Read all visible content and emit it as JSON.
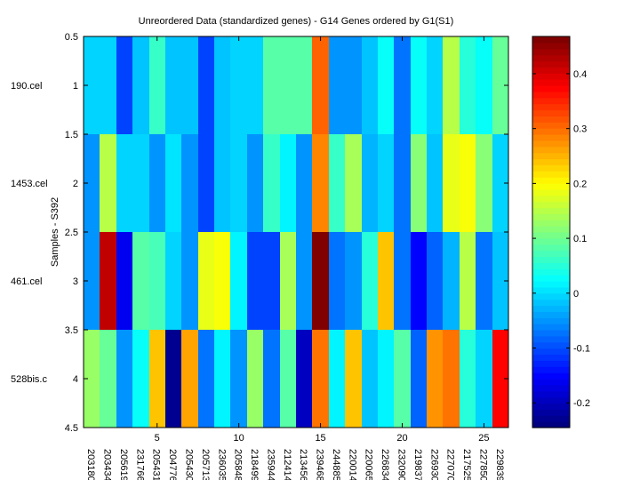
{
  "chart_data": {
    "type": "heatmap",
    "title": "Unreordered Data (standardized genes) - G14 Genes ordered by G1(S1)",
    "xlabel": "",
    "ylabel": "Samples - S392",
    "colormap": "jet",
    "clim": [
      -0.245,
      0.468
    ],
    "row_labels": [
      "190.cel",
      "1453.cel",
      "461.cel",
      "528bis.c"
    ],
    "column_labels": [
      "203180_",
      "203434_",
      "205619_",
      "231766_",
      "205431_",
      "204776_",
      "205430_",
      "205713_",
      "236035_",
      "205848_",
      "218499_",
      "235944_",
      "212414_",
      "213456_",
      "239468_",
      "244885_",
      "220014_",
      "220065_",
      "226834_",
      "232090_",
      "219837_",
      "226930_",
      "227070_",
      "217525_",
      "227850_",
      "229839_"
    ],
    "x_ticks": [
      5,
      10,
      15,
      20,
      25
    ],
    "x_tick_labels": [
      "5",
      "10",
      "15",
      "20",
      "25"
    ],
    "y_ticks": [
      0.5,
      1,
      1.5,
      2,
      2.5,
      3,
      3.5,
      4,
      4.5
    ],
    "y_tick_labels": [
      "0.5",
      "1",
      "1.5",
      "2",
      "2.5",
      "3",
      "3.5",
      "4",
      "4.5"
    ],
    "ylim": [
      0.5,
      4.5
    ],
    "xlim": [
      0.5,
      26.5
    ],
    "values": [
      [
        0.0,
        0.0,
        -0.111,
        -0.022,
        0.058,
        -0.022,
        -0.022,
        -0.111,
        -0.022,
        0.0,
        0.0,
        0.081,
        0.081,
        0.081,
        0.308,
        -0.045,
        -0.055,
        -0.022,
        0.033,
        -0.067,
        0.033,
        -0.01,
        0.148,
        0.045,
        0.033,
        0.09
      ],
      [
        -0.045,
        0.156,
        -0.01,
        -0.01,
        -0.055,
        0.01,
        -0.045,
        -0.111,
        -0.022,
        0.0,
        -0.045,
        0.058,
        0.022,
        -0.045,
        0.281,
        0.058,
        0.14,
        -0.033,
        0.0,
        -0.077,
        0.112,
        -0.022,
        0.183,
        0.2,
        0.112,
        -0.01
      ],
      [
        -0.045,
        0.414,
        -0.16,
        0.081,
        0.07,
        0.0,
        -0.055,
        0.183,
        0.19,
        0.022,
        -0.111,
        -0.111,
        0.14,
        -0.045,
        0.468,
        -0.077,
        -0.045,
        0.045,
        0.24,
        -0.077,
        -0.15,
        -0.088,
        -0.033,
        0.148,
        -0.067,
        -0.022
      ],
      [
        0.125,
        0.09,
        -0.045,
        0.033,
        0.236,
        -0.225,
        0.265,
        -0.067,
        0.022,
        -0.045,
        0.125,
        -0.077,
        0.081,
        -0.195,
        0.3,
        0.022,
        0.24,
        -0.022,
        0.022,
        0.081,
        -0.088,
        0.275,
        0.3,
        0.045,
        0.0,
        0.368
      ]
    ],
    "colorbar": {
      "ticks": [
        0.4,
        0.3,
        0.2,
        0.1,
        0,
        -0.1,
        -0.2
      ],
      "tick_labels": [
        "0.4",
        "0.3",
        "0.2",
        "0.1",
        "0",
        "-0.1",
        "-0.2"
      ]
    },
    "grid": false
  }
}
